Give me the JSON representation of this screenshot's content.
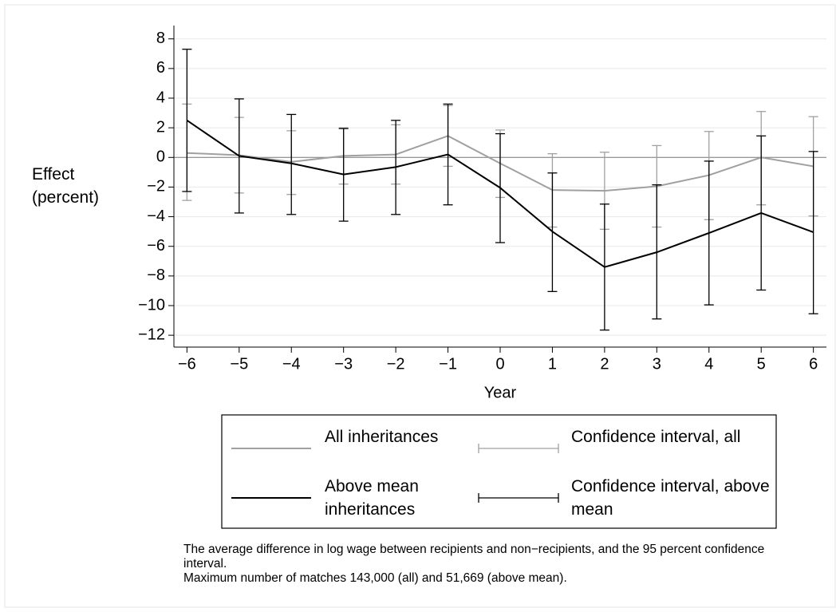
{
  "chart_data": {
    "type": "line",
    "y_label": "Effect (percent)",
    "x_label": "Year",
    "x": [
      -6,
      -5,
      -4,
      -3,
      -2,
      -1,
      0,
      1,
      2,
      3,
      4,
      5,
      6
    ],
    "xlim": [
      -6.25,
      6.25
    ],
    "xticks": [
      {
        "value": -6,
        "label": "−6"
      },
      {
        "value": -5,
        "label": "−5"
      },
      {
        "value": -4,
        "label": "−4"
      },
      {
        "value": -3,
        "label": "−3"
      },
      {
        "value": -2,
        "label": "−2"
      },
      {
        "value": -1,
        "label": "−1"
      },
      0,
      1,
      2,
      3,
      4,
      5,
      6
    ],
    "ylim": [
      -12.8,
      8.9
    ],
    "yticks": [
      {
        "value": -12,
        "label": "−12"
      },
      {
        "value": -10,
        "label": "−10"
      },
      {
        "value": -8,
        "label": "−8"
      },
      {
        "value": -6,
        "label": "−6"
      },
      {
        "value": -4,
        "label": "−4"
      },
      {
        "value": -2,
        "label": "−2"
      },
      0,
      2,
      4,
      6,
      8
    ],
    "grid": true,
    "series": [
      {
        "name": "All inheritances",
        "ci_name": "Confidence interval, all",
        "color": "#a0a0a0",
        "values": [
          0.3,
          0.15,
          -0.3,
          0.1,
          0.2,
          1.45,
          -0.4,
          -2.2,
          -2.25,
          -1.95,
          -1.2,
          0,
          -0.6
        ],
        "lower": [
          -2.9,
          -2.4,
          -2.5,
          -1.8,
          -1.8,
          -0.6,
          -2.7,
          -4.7,
          -4.85,
          -4.7,
          -4.2,
          -3.2,
          -3.95
        ],
        "upper": [
          3.6,
          2.7,
          1.8,
          2.0,
          2.2,
          3.5,
          1.85,
          0.25,
          0.35,
          0.8,
          1.75,
          3.1,
          2.75
        ]
      },
      {
        "name": "Above mean inheritances",
        "ci_name": "Confidence interval, above mean",
        "color": "#000000",
        "values": [
          2.5,
          0.1,
          -0.4,
          -1.15,
          -0.65,
          0.2,
          -2.05,
          -5.0,
          -7.4,
          -6.4,
          -5.1,
          -3.75,
          -5.05
        ],
        "lower": [
          -2.3,
          -3.75,
          -3.85,
          -4.3,
          -3.85,
          -3.2,
          -5.75,
          -9.05,
          -11.65,
          -10.9,
          -9.95,
          -8.95,
          -10.55
        ],
        "upper": [
          7.3,
          3.95,
          2.9,
          1.95,
          2.5,
          3.6,
          1.6,
          -1.05,
          -3.15,
          -1.85,
          -0.25,
          1.45,
          0.4
        ]
      }
    ],
    "notes": [
      "The average difference in log wage between recipients and non−recipients, and the 95 percent confidence interval.",
      "Maximum number of matches 143,000 (all) and 51,669 (above mean)."
    ]
  }
}
